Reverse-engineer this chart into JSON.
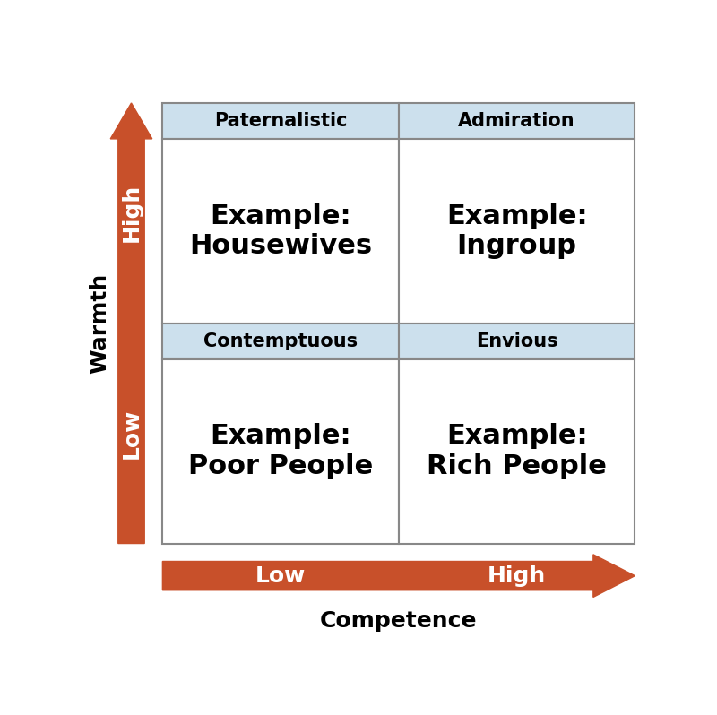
{
  "title_competence": "Competence",
  "title_warmth": "Warmth",
  "arrow_color": "#C8502A",
  "arrow_text_color": "#FFFFFF",
  "header_bg_color": "#CCE0ED",
  "cell_bg_color": "#FFFFFF",
  "cell_text_color": "#000000",
  "header_text_color": "#000000",
  "headers": [
    "Paternalistic",
    "Admiration",
    "Contemptuous",
    "Envious"
  ],
  "cell_texts": [
    "Example:\nHousewives",
    "Example:\nIngroup",
    "Example:\nPoor People",
    "Example:\nRich People"
  ],
  "warmth_labels": [
    "High",
    "Low"
  ],
  "competence_labels": [
    "Low",
    "High"
  ],
  "grid_color": "#888888",
  "header_fontsize": 15,
  "cell_fontsize": 22,
  "arrow_label_fontsize": 18,
  "axis_title_fontsize": 18
}
